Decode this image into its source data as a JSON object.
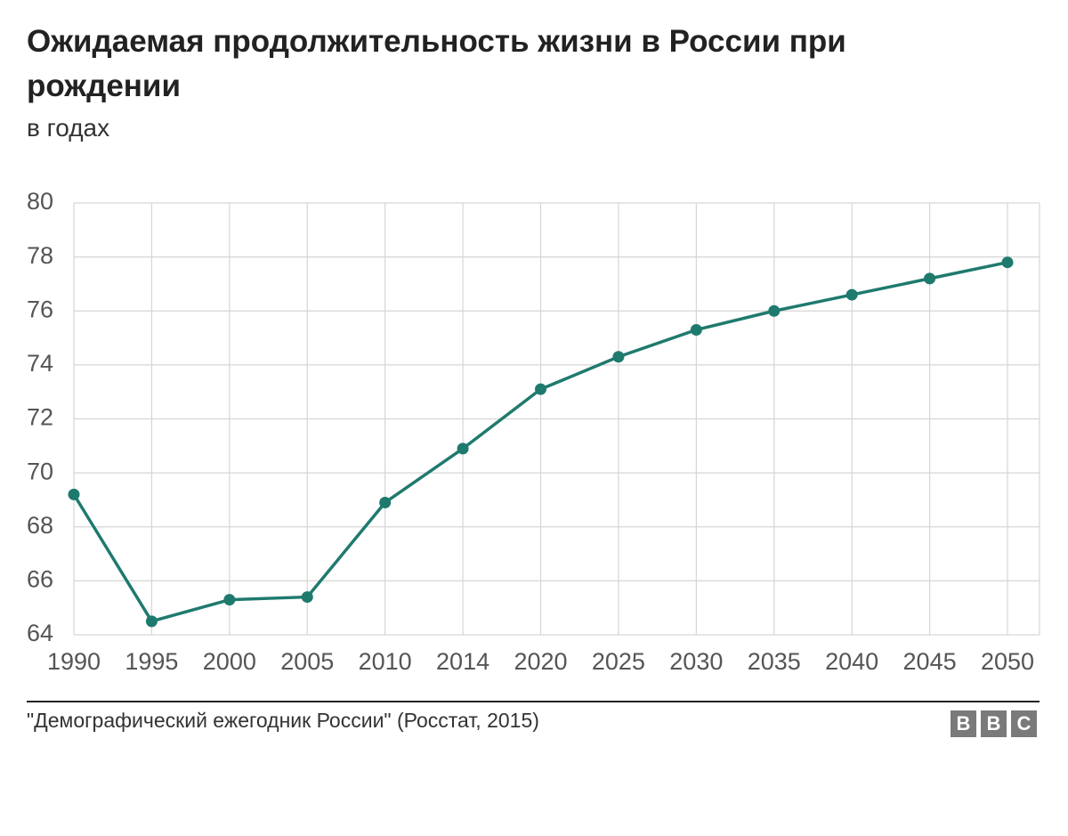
{
  "chart_data": {
    "type": "line",
    "title": "Ожидаемая продолжительность жизни в России при рождении",
    "subtitle": "в годах",
    "categories": [
      "1990",
      "1995",
      "2000",
      "2005",
      "2010",
      "2014",
      "2020",
      "2025",
      "2030",
      "2035",
      "2040",
      "2045",
      "2050"
    ],
    "values": [
      69.2,
      64.5,
      65.3,
      65.4,
      68.9,
      70.9,
      73.1,
      74.3,
      75.3,
      76.0,
      76.6,
      77.2,
      77.8
    ],
    "color": "#1f7a6e",
    "ylim": [
      64,
      80
    ],
    "yticks": [
      64,
      66,
      68,
      70,
      72,
      74,
      76,
      78,
      80
    ],
    "grid": true,
    "source": "\"Демографический ежегодник России\" (Росстат, 2015)",
    "logo": [
      "B",
      "B",
      "C"
    ]
  }
}
